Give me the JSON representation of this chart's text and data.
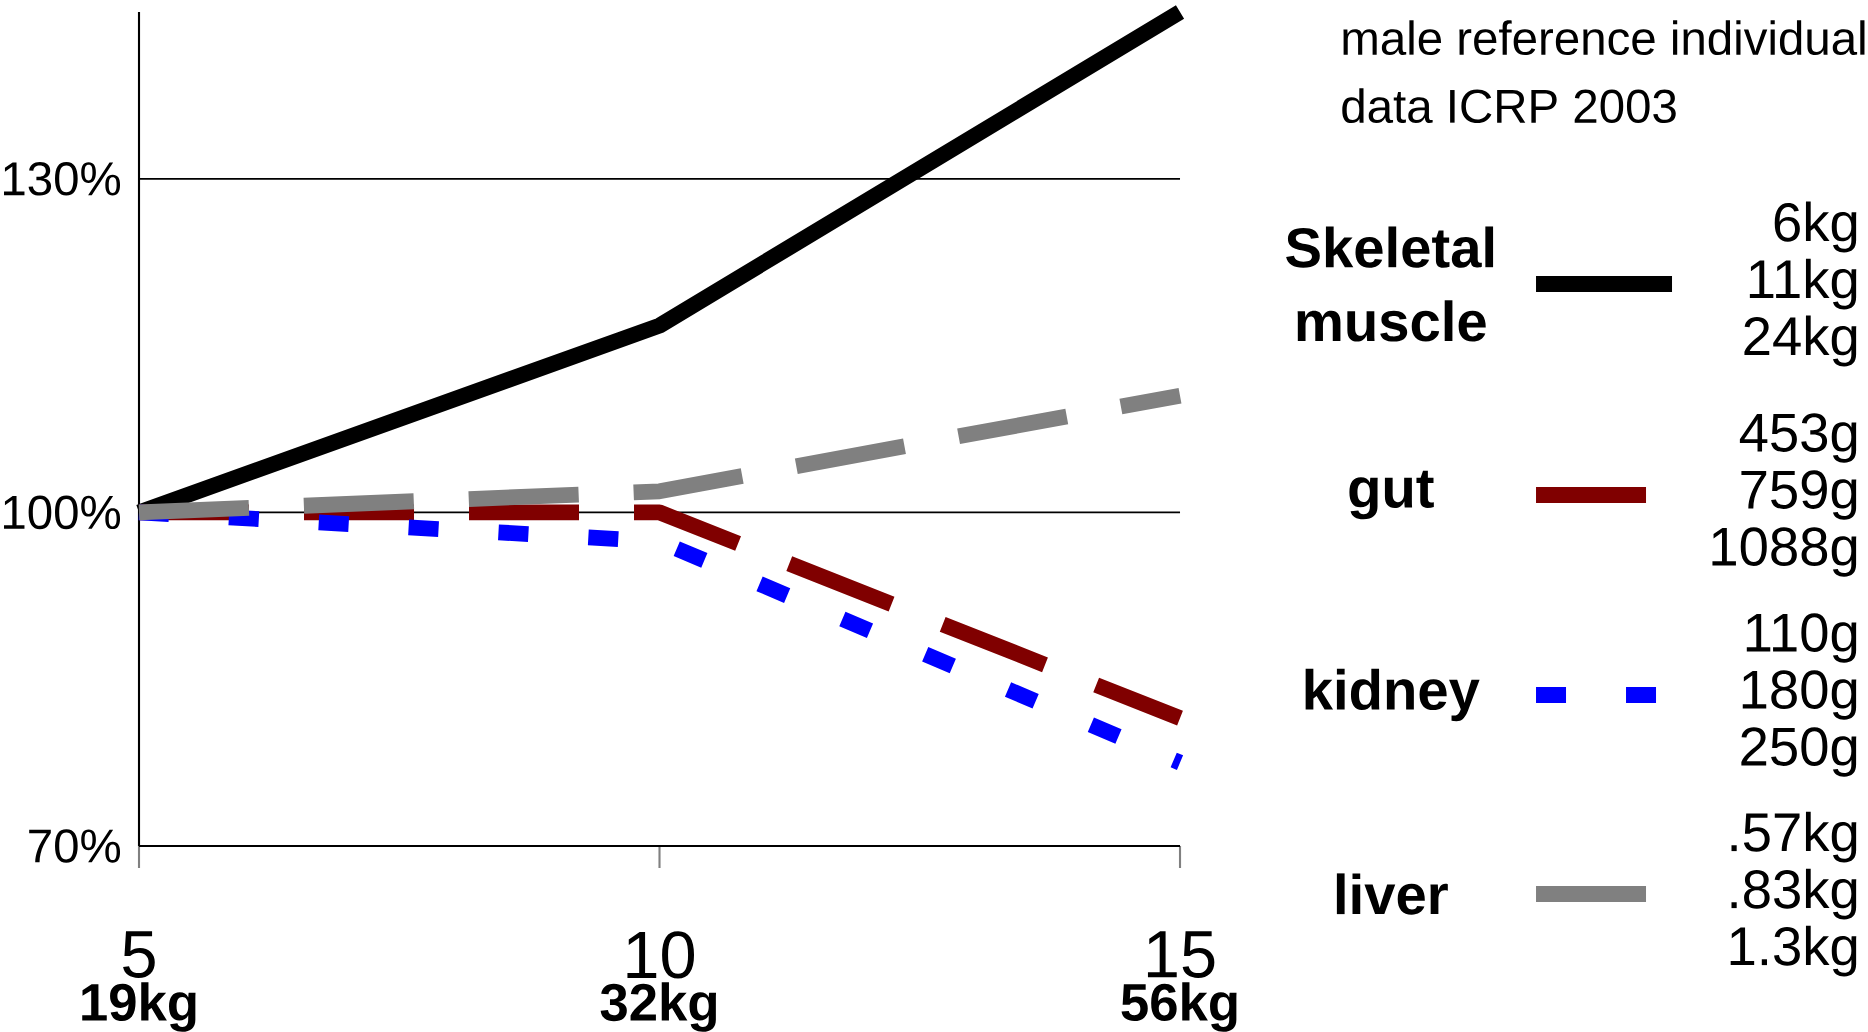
{
  "chart_data": {
    "type": "line",
    "x": [
      5,
      10,
      15
    ],
    "series": [
      {
        "name": "Skeletal muscle",
        "color": "#000000",
        "line_style": "solid",
        "values": [
          100,
          116.8,
          145
        ]
      },
      {
        "name": "gut",
        "color": "#800000",
        "line_style": "dashed",
        "values": [
          100,
          100,
          81.5
        ]
      },
      {
        "name": "kidney",
        "color": "#0000ff",
        "line_style": "dotted",
        "values": [
          100,
          97.4,
          77.5
        ]
      },
      {
        "name": "liver",
        "color": "#808080",
        "line_style": "dashed",
        "values": [
          100,
          101.9,
          110.5
        ]
      }
    ],
    "xlim": [
      5,
      15
    ],
    "xticks": [
      5,
      10,
      15
    ],
    "ylim": [
      70,
      145
    ],
    "yticks": [
      {
        "value": 70,
        "label": "70%"
      },
      {
        "value": 100,
        "label": "100%"
      },
      {
        "value": 130,
        "label": "130%"
      }
    ],
    "grid": "y",
    "legend": "right",
    "annotations": [
      "male reference individual",
      "data ICRP 2003",
      "19kg",
      "32kg",
      "56kg",
      "6kg",
      "11kg",
      "24kg",
      "453g",
      "759g",
      "1088g",
      "110g",
      "180g",
      "250g",
      ".57kg",
      ".83kg",
      "1.3kg"
    ]
  }
}
